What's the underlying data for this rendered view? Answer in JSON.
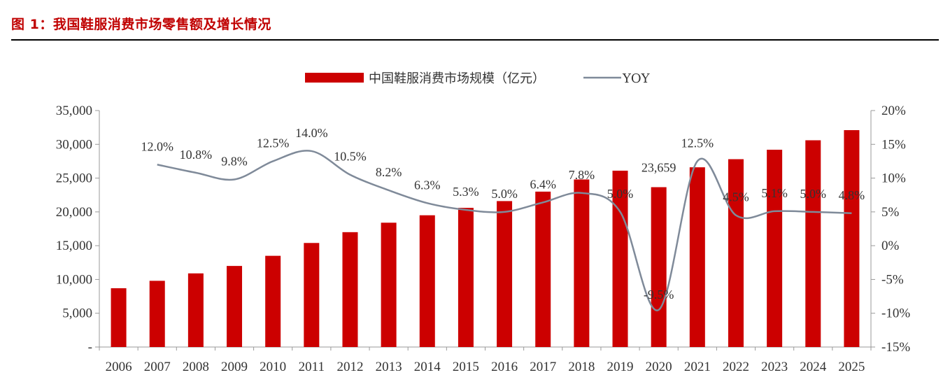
{
  "figure": {
    "title": "图 1：我国鞋服消费市场零售额及增长情况"
  },
  "colors": {
    "bar": "#cc0000",
    "line": "#7f8a99",
    "title": "#c00000",
    "axis": "#999999"
  },
  "chart_data": {
    "type": "bar",
    "title": "",
    "categories": [
      "2006",
      "2007",
      "2008",
      "2009",
      "2010",
      "2011",
      "2012",
      "2013",
      "2014",
      "2015",
      "2016",
      "2017",
      "2018",
      "2019",
      "2020",
      "2021",
      "2022",
      "2023",
      "2024",
      "2025"
    ],
    "series": [
      {
        "name": "中国鞋服消费市场规模（亿元）",
        "type": "bar",
        "axis": "left",
        "values": [
          8700,
          9800,
          10900,
          12000,
          13500,
          15400,
          17000,
          18400,
          19500,
          20600,
          21600,
          23000,
          24800,
          26100,
          23659,
          26600,
          27800,
          29200,
          30600,
          32100
        ]
      },
      {
        "name": "YOY",
        "type": "line",
        "axis": "right",
        "values": [
          null,
          12.0,
          10.8,
          9.8,
          12.5,
          14.0,
          10.5,
          8.2,
          6.3,
          5.3,
          5.0,
          6.4,
          7.8,
          5.0,
          -9.5,
          12.5,
          4.5,
          5.1,
          5.0,
          4.8
        ]
      }
    ],
    "data_labels": [
      {
        "index": 1,
        "series": "YOY",
        "text": "12.0%"
      },
      {
        "index": 2,
        "series": "YOY",
        "text": "10.8%"
      },
      {
        "index": 3,
        "series": "YOY",
        "text": "9.8%"
      },
      {
        "index": 4,
        "series": "YOY",
        "text": "12.5%"
      },
      {
        "index": 5,
        "series": "YOY",
        "text": "14.0%"
      },
      {
        "index": 6,
        "series": "YOY",
        "text": "10.5%"
      },
      {
        "index": 7,
        "series": "YOY",
        "text": "8.2%"
      },
      {
        "index": 8,
        "series": "YOY",
        "text": "6.3%"
      },
      {
        "index": 9,
        "series": "YOY",
        "text": "5.3%"
      },
      {
        "index": 10,
        "series": "YOY",
        "text": "5.0%"
      },
      {
        "index": 11,
        "series": "YOY",
        "text": "6.4%"
      },
      {
        "index": 12,
        "series": "YOY",
        "text": "7.8%"
      },
      {
        "index": 13,
        "series": "YOY",
        "text": "5.0%"
      },
      {
        "index": 14,
        "series": "YOY",
        "text": "-9.5%"
      },
      {
        "index": 14,
        "series": "bar",
        "text": "23,659"
      },
      {
        "index": 15,
        "series": "YOY",
        "text": "12.5%"
      },
      {
        "index": 16,
        "series": "YOY",
        "text": "4.5%"
      },
      {
        "index": 17,
        "series": "YOY",
        "text": "5.1%"
      },
      {
        "index": 18,
        "series": "YOY",
        "text": "5.0%"
      },
      {
        "index": 19,
        "series": "YOY",
        "text": "4.8%"
      }
    ],
    "y_left": {
      "min": 0,
      "max": 35000,
      "ticks": [
        0,
        5000,
        10000,
        15000,
        20000,
        25000,
        30000,
        35000
      ],
      "tick_labels": [
        "-",
        "5,000",
        "10,000",
        "15,000",
        "20,000",
        "25,000",
        "30,000",
        "35,000"
      ]
    },
    "y_right": {
      "min": -15,
      "max": 20,
      "ticks": [
        -15,
        -10,
        -5,
        0,
        5,
        10,
        15,
        20
      ],
      "tick_labels": [
        "-15%",
        "-10%",
        "-5%",
        "0%",
        "5%",
        "10%",
        "15%",
        "20%"
      ]
    },
    "grid": false,
    "legend_position": "top-center"
  }
}
